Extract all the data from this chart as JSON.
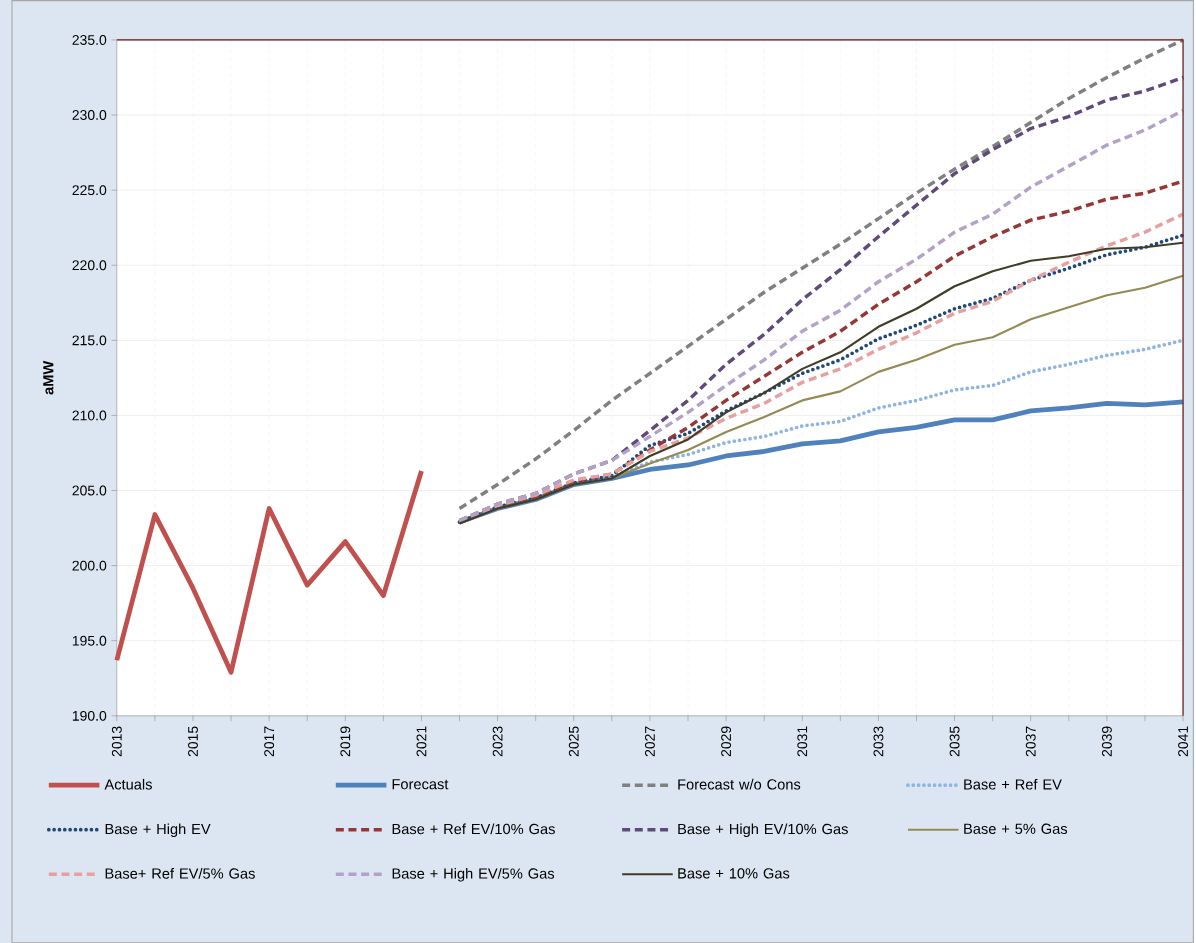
{
  "chart_data": {
    "type": "line",
    "ylabel": "aMW",
    "xlim": [
      2013,
      2041
    ],
    "ylim": [
      190,
      235
    ],
    "xticks": [
      {
        "value": 2013,
        "label": "2013"
      },
      {
        "value": 2014,
        "label": null
      },
      {
        "value": 2015,
        "label": "2015"
      },
      {
        "value": 2016,
        "label": null
      },
      {
        "value": 2017,
        "label": "2017"
      },
      {
        "value": 2018,
        "label": null
      },
      {
        "value": 2019,
        "label": "2019"
      },
      {
        "value": 2020,
        "label": null
      },
      {
        "value": 2021,
        "label": "2021"
      },
      {
        "value": 2022,
        "label": null
      },
      {
        "value": 2023,
        "label": "2023"
      },
      {
        "value": 2024,
        "label": null
      },
      {
        "value": 2025,
        "label": "2025"
      },
      {
        "value": 2026,
        "label": null
      },
      {
        "value": 2027,
        "label": "2027"
      },
      {
        "value": 2028,
        "label": null
      },
      {
        "value": 2029,
        "label": "2029"
      },
      {
        "value": 2030,
        "label": null
      },
      {
        "value": 2031,
        "label": "2031"
      },
      {
        "value": 2032,
        "label": null
      },
      {
        "value": 2033,
        "label": "2033"
      },
      {
        "value": 2034,
        "label": null
      },
      {
        "value": 2035,
        "label": "2035"
      },
      {
        "value": 2036,
        "label": null
      },
      {
        "value": 2037,
        "label": "2037"
      },
      {
        "value": 2038,
        "label": null
      },
      {
        "value": 2039,
        "label": "2039"
      },
      {
        "value": 2040,
        "label": null
      },
      {
        "value": 2041,
        "label": "2041"
      }
    ],
    "yticks": [
      {
        "value": 190,
        "label": "190.0"
      },
      {
        "value": 195,
        "label": "195.0"
      },
      {
        "value": 200,
        "label": "200.0"
      },
      {
        "value": 205,
        "label": "205.0"
      },
      {
        "value": 210,
        "label": "210.0"
      },
      {
        "value": 215,
        "label": "215.0"
      },
      {
        "value": 220,
        "label": "220.0"
      },
      {
        "value": 225,
        "label": "225.0"
      },
      {
        "value": 230,
        "label": "230.0"
      },
      {
        "value": 235,
        "label": "235.0"
      }
    ],
    "grid": true,
    "legend": "bottom",
    "series": [
      {
        "name": "Actuals",
        "color": "#c0504d",
        "line_style": "solid",
        "x": [
          2013,
          2014,
          2015,
          2016,
          2017,
          2018,
          2019,
          2020,
          2021
        ],
        "values": [
          193.7,
          203.4,
          198.5,
          192.9,
          203.8,
          198.7,
          201.6,
          198.0,
          206.3
        ]
      },
      {
        "name": "Forecast",
        "color": "#4f81bd",
        "line_style": "solid",
        "x": [
          2022,
          2023,
          2024,
          2025,
          2026,
          2027,
          2028,
          2029,
          2030,
          2031,
          2032,
          2033,
          2034,
          2035,
          2036,
          2037,
          2038,
          2039,
          2040,
          2041
        ],
        "values": [
          202.9,
          203.8,
          204.4,
          205.4,
          205.8,
          206.4,
          206.7,
          207.3,
          207.6,
          208.1,
          208.3,
          208.9,
          209.2,
          209.7,
          209.7,
          210.3,
          210.5,
          210.8,
          210.7,
          210.9
        ]
      },
      {
        "name": "Forecast w/o Cons",
        "color": "#808080",
        "line_style": "dashed",
        "x": [
          2022,
          2023,
          2024,
          2025,
          2026,
          2027,
          2028,
          2029,
          2030,
          2031,
          2032,
          2033,
          2034,
          2035,
          2036,
          2037,
          2038,
          2039,
          2040,
          2041
        ],
        "values": [
          203.8,
          205.4,
          207.1,
          209.0,
          211.0,
          212.8,
          214.6,
          216.4,
          218.2,
          219.8,
          221.4,
          223.1,
          224.8,
          226.4,
          227.9,
          229.5,
          231.1,
          232.5,
          233.8,
          235.0
        ]
      },
      {
        "name": "Base + Ref EV",
        "color": "#8db4e2",
        "line_style": "dotted",
        "x": [
          2022,
          2023,
          2024,
          2025,
          2026,
          2027,
          2028,
          2029,
          2030,
          2031,
          2032,
          2033,
          2034,
          2035,
          2036,
          2037,
          2038,
          2039,
          2040,
          2041
        ],
        "values": [
          202.9,
          203.9,
          204.5,
          205.5,
          205.9,
          206.9,
          207.4,
          208.2,
          208.6,
          209.3,
          209.6,
          210.5,
          211.0,
          211.7,
          212.0,
          212.9,
          213.4,
          214.0,
          214.4,
          215.0
        ]
      },
      {
        "name": "Base + High EV",
        "color": "#1f497d",
        "line_style": "dotted",
        "x": [
          2022,
          2023,
          2024,
          2025,
          2026,
          2027,
          2028,
          2029,
          2030,
          2031,
          2032,
          2033,
          2034,
          2035,
          2036,
          2037,
          2038,
          2039,
          2040,
          2041
        ],
        "values": [
          202.9,
          203.9,
          204.5,
          205.5,
          206.0,
          208.0,
          208.8,
          210.3,
          211.5,
          212.8,
          213.7,
          215.1,
          216.0,
          217.1,
          217.8,
          219.0,
          219.8,
          220.7,
          221.2,
          222.0
        ]
      },
      {
        "name": "Base + Ref EV/10% Gas",
        "color": "#953735",
        "line_style": "dashed",
        "x": [
          2022,
          2023,
          2024,
          2025,
          2026,
          2027,
          2028,
          2029,
          2030,
          2031,
          2032,
          2033,
          2034,
          2035,
          2036,
          2037,
          2038,
          2039,
          2040,
          2041
        ],
        "values": [
          202.9,
          204.0,
          204.6,
          205.6,
          206.1,
          207.7,
          209.2,
          211.0,
          212.6,
          214.2,
          215.6,
          217.4,
          218.9,
          220.6,
          221.9,
          223.0,
          223.6,
          224.4,
          224.8,
          225.6
        ]
      },
      {
        "name": "Base + High EV/10% Gas",
        "color": "#604a7b",
        "line_style": "dashed",
        "x": [
          2022,
          2023,
          2024,
          2025,
          2026,
          2027,
          2028,
          2029,
          2030,
          2031,
          2032,
          2033,
          2034,
          2035,
          2036,
          2037,
          2038,
          2039,
          2040,
          2041
        ],
        "values": [
          203.0,
          204.1,
          204.8,
          206.1,
          207.0,
          209.0,
          211.0,
          213.4,
          215.4,
          217.7,
          219.7,
          221.9,
          224.0,
          226.1,
          227.7,
          229.1,
          229.9,
          231.0,
          231.6,
          232.5
        ]
      },
      {
        "name": "Base + 5% Gas",
        "color": "#948a54",
        "line_style": "solid",
        "x": [
          2022,
          2023,
          2024,
          2025,
          2026,
          2027,
          2028,
          2029,
          2030,
          2031,
          2032,
          2033,
          2034,
          2035,
          2036,
          2037,
          2038,
          2039,
          2040,
          2041
        ],
        "values": [
          202.8,
          203.8,
          204.4,
          205.4,
          205.8,
          206.8,
          207.7,
          208.9,
          209.9,
          211.0,
          211.6,
          212.9,
          213.7,
          214.7,
          215.2,
          216.4,
          217.2,
          218.0,
          218.5,
          219.3
        ]
      },
      {
        "name": "Base+ Ref EV/5% Gas",
        "color": "#e6a0a0",
        "line_style": "dashed",
        "x": [
          2022,
          2023,
          2024,
          2025,
          2026,
          2027,
          2028,
          2029,
          2030,
          2031,
          2032,
          2033,
          2034,
          2035,
          2036,
          2037,
          2038,
          2039,
          2040,
          2041
        ],
        "values": [
          202.9,
          204.0,
          204.7,
          205.7,
          206.1,
          207.6,
          208.5,
          209.8,
          210.8,
          212.2,
          213.1,
          214.4,
          215.5,
          216.8,
          217.6,
          219.0,
          220.2,
          221.3,
          222.2,
          223.4
        ]
      },
      {
        "name": "Base + High EV/5% Gas",
        "color": "#b3a2c7",
        "line_style": "dashed",
        "x": [
          2022,
          2023,
          2024,
          2025,
          2026,
          2027,
          2028,
          2029,
          2030,
          2031,
          2032,
          2033,
          2034,
          2035,
          2036,
          2037,
          2038,
          2039,
          2040,
          2041
        ],
        "values": [
          203.0,
          204.1,
          204.8,
          206.1,
          207.0,
          208.6,
          210.2,
          212.0,
          213.7,
          215.6,
          217.0,
          218.9,
          220.4,
          222.2,
          223.4,
          225.2,
          226.6,
          228.0,
          229.0,
          230.3
        ]
      },
      {
        "name": "Base + 10% Gas",
        "color": "#3f3d27",
        "line_style": "solid",
        "x": [
          2022,
          2023,
          2024,
          2025,
          2026,
          2027,
          2028,
          2029,
          2030,
          2031,
          2032,
          2033,
          2034,
          2035,
          2036,
          2037,
          2038,
          2039,
          2040,
          2041
        ],
        "values": [
          202.8,
          203.8,
          204.4,
          205.4,
          205.8,
          207.3,
          208.4,
          210.2,
          211.5,
          213.1,
          214.2,
          215.9,
          217.1,
          218.6,
          219.6,
          220.3,
          220.6,
          221.1,
          221.2,
          221.5
        ]
      }
    ]
  }
}
